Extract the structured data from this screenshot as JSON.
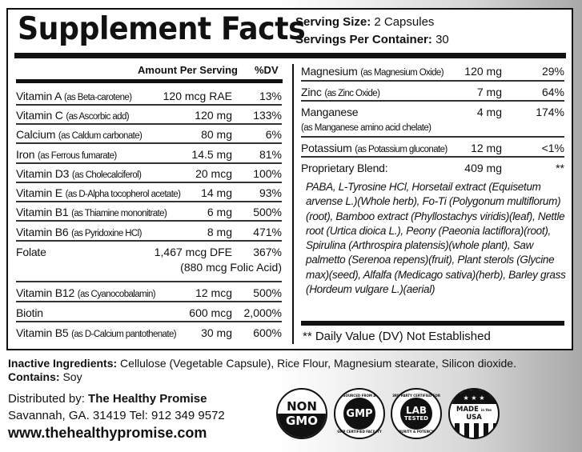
{
  "header": {
    "title": "Supplement Facts",
    "serving_size_label": "Serving Size:",
    "serving_size": "2 Capsules",
    "servings_label": "Servings Per Container:",
    "servings": "30"
  },
  "columns": {
    "amount": "Amount Per Serving",
    "dv": "%DV"
  },
  "left_rows": [
    {
      "name": "Vitamin A",
      "source": "(as Beta-carotene)",
      "amount": "120 mcg RAE",
      "dv": "13%"
    },
    {
      "name": "Vitamin C",
      "source": "(as Ascorbic add)",
      "amount": "120 mg",
      "dv": "133%"
    },
    {
      "name": "Calcium",
      "source": "(as Caldum carbonate)",
      "amount": "80 mg",
      "dv": "6%"
    },
    {
      "name": "Iron",
      "source": "(as Ferrous fumarate)",
      "amount": "14.5 mg",
      "dv": "81%"
    },
    {
      "name": "Vitamin D3",
      "source": "(as Cholecalciferol)",
      "amount": "20 mcg",
      "dv": "100%"
    },
    {
      "name": "Vitamin E",
      "source": "(as D-Alpha tocopherol acetate)",
      "amount": "14 mg",
      "dv": "93%"
    },
    {
      "name": "Vitamin B1",
      "source": "(as Thiamine mononitrate)",
      "amount": "6 mg",
      "dv": "500%"
    },
    {
      "name": "Vitamin B6",
      "source": "(as Pyridoxine HCl)",
      "amount": "8 mg",
      "dv": "471%"
    },
    {
      "name": "Folate",
      "source": "",
      "amount": "1,467 mcg DFE",
      "dv": "367%",
      "note": "(880 mcg Folic Acid)"
    },
    {
      "name": "Vitamin B12",
      "source": "(as Cyanocobalamin)",
      "amount": "12 mcg",
      "dv": "500%"
    },
    {
      "name": "Biotin",
      "source": "",
      "amount": "600 mcg",
      "dv": "2,000%"
    },
    {
      "name": "Vitamin B5",
      "source": "(as D-Calcium pantothenate)",
      "amount": "30 mg",
      "dv": "600%"
    }
  ],
  "right_rows": [
    {
      "name": "Magnesium",
      "source": "(as Magnesium Oxide)",
      "amount": "120 mg",
      "dv": "29%"
    },
    {
      "name": "Zinc",
      "source": "(as Zinc Oxide)",
      "amount": "7 mg",
      "dv": "64%"
    },
    {
      "name": "Manganese",
      "source": "(as Manganese amino acid chelate)",
      "amount": "4 mg",
      "dv": "174%"
    },
    {
      "name": "Potassium",
      "source": "(as Potassium gluconate)",
      "amount": "12 mg",
      "dv": "<1%"
    },
    {
      "name": "Proprietary Blend:",
      "source": "",
      "amount": "409 mg",
      "dv": "**"
    }
  ],
  "blend": "PABA, L-Tyrosine HCl, Horsetail extract (Equisetum arvense L.)(Whole herb), Fo-Ti (Polygonum multiflorum)(root), Bamboo extract (Phyllostachys viridis)(leaf), Nettle root (Urtica dioica L.),  Peony (Paeonia lactiflora)(root), Spirulina (Arthrospira platensis)(whole plant), Saw palmetto (Serenoa repens)(fruit), Plant sterols (Glycine max)(seed), Alfalfa (Medicago sativa)(herb), Barley grass (Hordeum vulgare L.)(aerial)",
  "dv_note": "** Daily Value (DV) Not Established",
  "footer": {
    "inactive_label": "Inactive Ingredients:",
    "inactive": "Cellulose (Vegetable Capsule), Rice Flour, Magnesium stearate, Silicon dioxide.",
    "contains_label": "Contains:",
    "contains": "Soy",
    "distributed_label": "Distributed by:",
    "company": "The Healthy Promise",
    "address": "Savannah, GA. 31419 Tel:  912 349 9572",
    "website": "www.thehealthypromise.com"
  },
  "badges": {
    "non_gmo": [
      "NON",
      "GMO"
    ],
    "gmp": {
      "top": "SOURCED FROM A",
      "center": "GMP",
      "bottom": "GMP CERTIFIED FACILITY"
    },
    "lab": {
      "top": "3RD PARTY CERTIFIED FOR",
      "center": "LAB",
      "sub": "TESTED",
      "bottom": "PURITY & POTENCY"
    },
    "usa": {
      "left": "MADE",
      "mid": "in the",
      "right": "USA"
    }
  }
}
